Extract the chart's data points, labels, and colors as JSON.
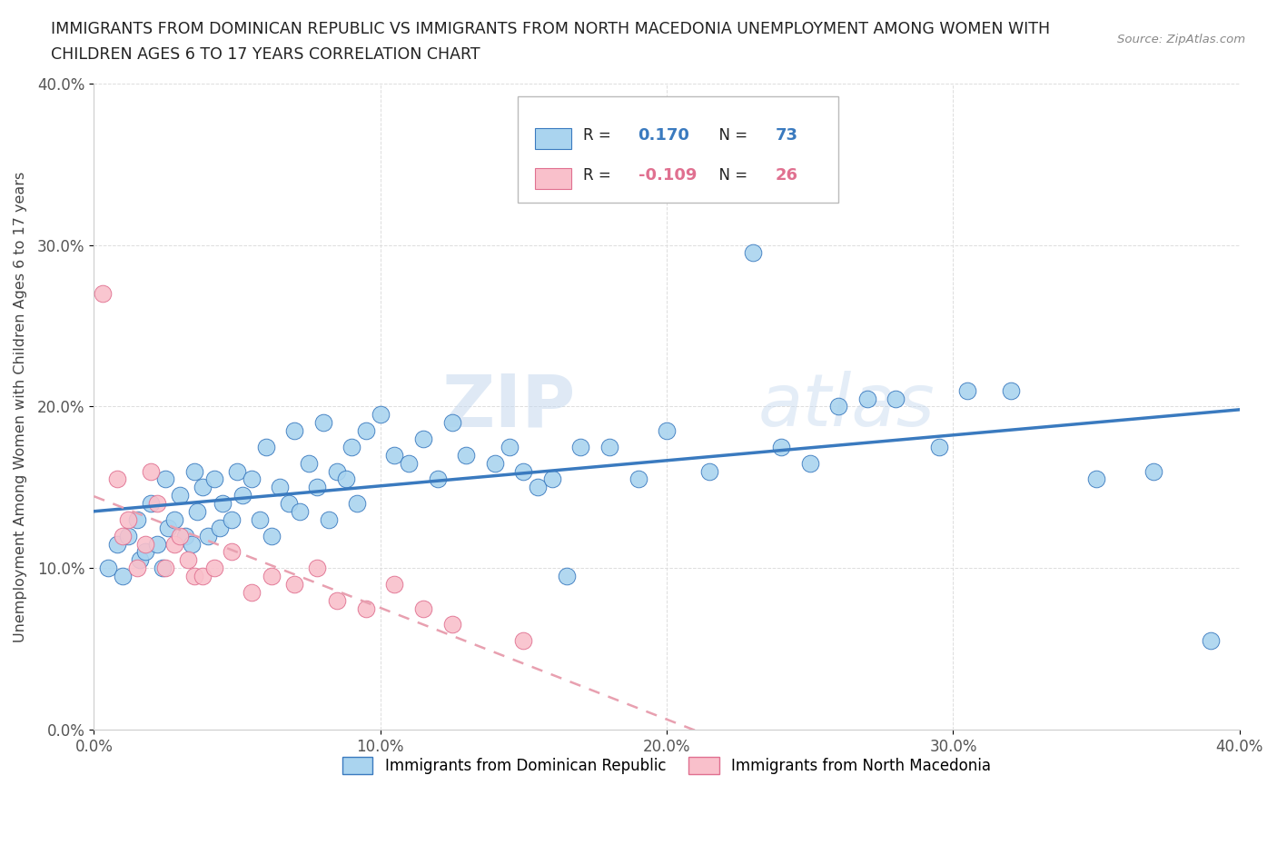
{
  "title_line1": "IMMIGRANTS FROM DOMINICAN REPUBLIC VS IMMIGRANTS FROM NORTH MACEDONIA UNEMPLOYMENT AMONG WOMEN WITH",
  "title_line2": "CHILDREN AGES 6 TO 17 YEARS CORRELATION CHART",
  "source": "Source: ZipAtlas.com",
  "ylabel": "Unemployment Among Women with Children Ages 6 to 17 years",
  "xlim": [
    0.0,
    0.4
  ],
  "ylim": [
    0.0,
    0.4
  ],
  "xticks": [
    0.0,
    0.1,
    0.2,
    0.3,
    0.4
  ],
  "yticks": [
    0.0,
    0.1,
    0.2,
    0.3,
    0.4
  ],
  "xticklabels": [
    "0.0%",
    "10.0%",
    "20.0%",
    "30.0%",
    "40.0%"
  ],
  "yticklabels": [
    "0.0%",
    "10.0%",
    "20.0%",
    "30.0%",
    "40.0%"
  ],
  "R_blue": 0.17,
  "N_blue": 73,
  "R_pink": -0.109,
  "N_pink": 26,
  "color_blue": "#aad4ef",
  "color_pink": "#f9c0cb",
  "line_color_blue": "#3a7abf",
  "line_color_pink": "#e07090",
  "line_color_pink_dash": "#e8a0b0",
  "watermark_zip": "ZIP",
  "watermark_atlas": "atlas",
  "legend_label_blue": "Immigrants from Dominican Republic",
  "legend_label_pink": "Immigrants from North Macedonia",
  "blue_x": [
    0.005,
    0.008,
    0.01,
    0.012,
    0.015,
    0.016,
    0.018,
    0.02,
    0.022,
    0.024,
    0.025,
    0.026,
    0.028,
    0.03,
    0.032,
    0.034,
    0.035,
    0.036,
    0.038,
    0.04,
    0.042,
    0.044,
    0.045,
    0.048,
    0.05,
    0.052,
    0.055,
    0.058,
    0.06,
    0.062,
    0.065,
    0.068,
    0.07,
    0.072,
    0.075,
    0.078,
    0.08,
    0.082,
    0.085,
    0.088,
    0.09,
    0.092,
    0.095,
    0.1,
    0.105,
    0.11,
    0.115,
    0.12,
    0.125,
    0.13,
    0.14,
    0.145,
    0.15,
    0.155,
    0.16,
    0.165,
    0.17,
    0.18,
    0.19,
    0.2,
    0.215,
    0.23,
    0.24,
    0.25,
    0.26,
    0.27,
    0.28,
    0.295,
    0.305,
    0.32,
    0.35,
    0.37,
    0.39
  ],
  "blue_y": [
    0.1,
    0.115,
    0.095,
    0.12,
    0.13,
    0.105,
    0.11,
    0.14,
    0.115,
    0.1,
    0.155,
    0.125,
    0.13,
    0.145,
    0.12,
    0.115,
    0.16,
    0.135,
    0.15,
    0.12,
    0.155,
    0.125,
    0.14,
    0.13,
    0.16,
    0.145,
    0.155,
    0.13,
    0.175,
    0.12,
    0.15,
    0.14,
    0.185,
    0.135,
    0.165,
    0.15,
    0.19,
    0.13,
    0.16,
    0.155,
    0.175,
    0.14,
    0.185,
    0.195,
    0.17,
    0.165,
    0.18,
    0.155,
    0.19,
    0.17,
    0.165,
    0.175,
    0.16,
    0.15,
    0.155,
    0.095,
    0.175,
    0.175,
    0.155,
    0.185,
    0.16,
    0.295,
    0.175,
    0.165,
    0.2,
    0.205,
    0.205,
    0.175,
    0.21,
    0.21,
    0.155,
    0.16,
    0.055
  ],
  "pink_x": [
    0.003,
    0.008,
    0.01,
    0.012,
    0.015,
    0.018,
    0.02,
    0.022,
    0.025,
    0.028,
    0.03,
    0.033,
    0.035,
    0.038,
    0.042,
    0.048,
    0.055,
    0.062,
    0.07,
    0.078,
    0.085,
    0.095,
    0.105,
    0.115,
    0.125,
    0.15
  ],
  "pink_y": [
    0.27,
    0.155,
    0.12,
    0.13,
    0.1,
    0.115,
    0.16,
    0.14,
    0.1,
    0.115,
    0.12,
    0.105,
    0.095,
    0.095,
    0.1,
    0.11,
    0.085,
    0.095,
    0.09,
    0.1,
    0.08,
    0.075,
    0.09,
    0.075,
    0.065,
    0.055
  ]
}
